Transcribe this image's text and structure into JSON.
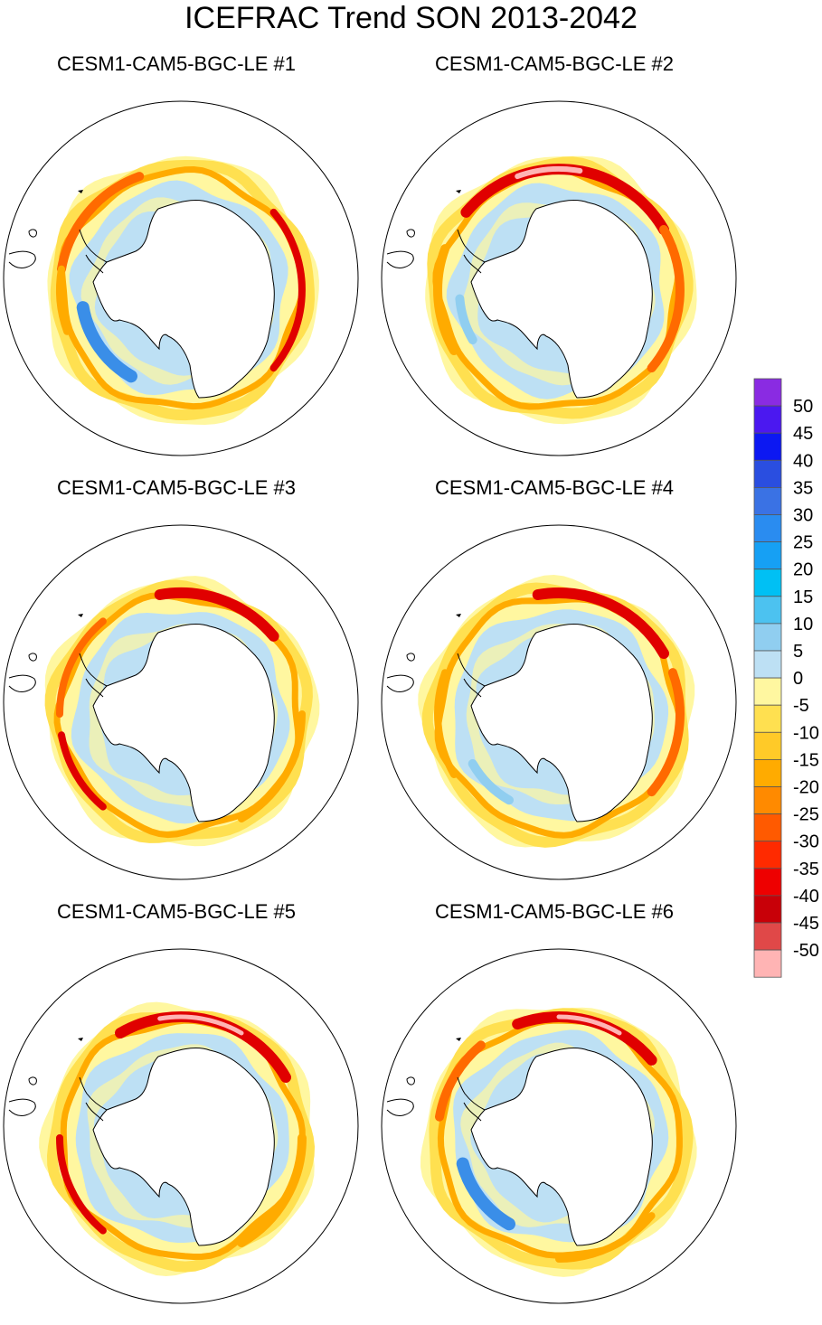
{
  "title": "ICEFRAC Trend SON 2013-2042",
  "panels": [
    {
      "id": 1,
      "label": "CESM1-CAM5-BGC-LE #1"
    },
    {
      "id": 2,
      "label": "CESM1-CAM5-BGC-LE #2"
    },
    {
      "id": 3,
      "label": "CESM1-CAM5-BGC-LE #3"
    },
    {
      "id": 4,
      "label": "CESM1-CAM5-BGC-LE #4"
    },
    {
      "id": 5,
      "label": "CESM1-CAM5-BGC-LE #5"
    },
    {
      "id": 6,
      "label": "CESM1-CAM5-BGC-LE #6"
    }
  ],
  "colorbar": {
    "labels": [
      "50",
      "45",
      "40",
      "35",
      "30",
      "25",
      "20",
      "15",
      "10",
      "5",
      "0",
      "-5",
      "-10",
      "-15",
      "-20",
      "-25",
      "-30",
      "-35",
      "-40",
      "-45",
      "-50"
    ],
    "colors": [
      "#8a2be2",
      "#4b18f0",
      "#0c18f2",
      "#2a4ee0",
      "#3a72e4",
      "#2a8cf0",
      "#16a0f4",
      "#00c0f4",
      "#4cc2f0",
      "#90cef0",
      "#bde0f4",
      "#fff7a0",
      "#ffe050",
      "#ffca28",
      "#ffab00",
      "#ff8a00",
      "#ff5a00",
      "#ff2a00",
      "#ee0000",
      "#c80008",
      "#e04848",
      "#ffb4b4"
    ]
  },
  "map_fields": {
    "palette": {
      "light_blue": "#bde0f4",
      "mid_blue": "#90cef0",
      "blue": "#3a8ee8",
      "pale_yellow": "#fff7a0",
      "yellow": "#ffe050",
      "orange": "#ffab00",
      "dark_orange": "#ff6a00",
      "red": "#e00000",
      "pink": "#ffb4b4"
    }
  }
}
